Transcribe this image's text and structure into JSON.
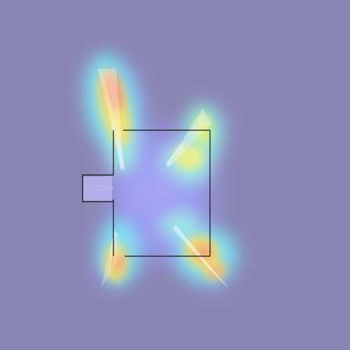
{
  "scene": {
    "background_color": "#8a86b3",
    "overlay": "attention-heatmap",
    "colormap": [
      "#7f7fff",
      "#7fd0ff",
      "#7fffd0",
      "#ffff7f",
      "#ffb07f",
      "#ff7f7f"
    ],
    "wall_color": "#000000",
    "ray_color": "#ffffff"
  }
}
